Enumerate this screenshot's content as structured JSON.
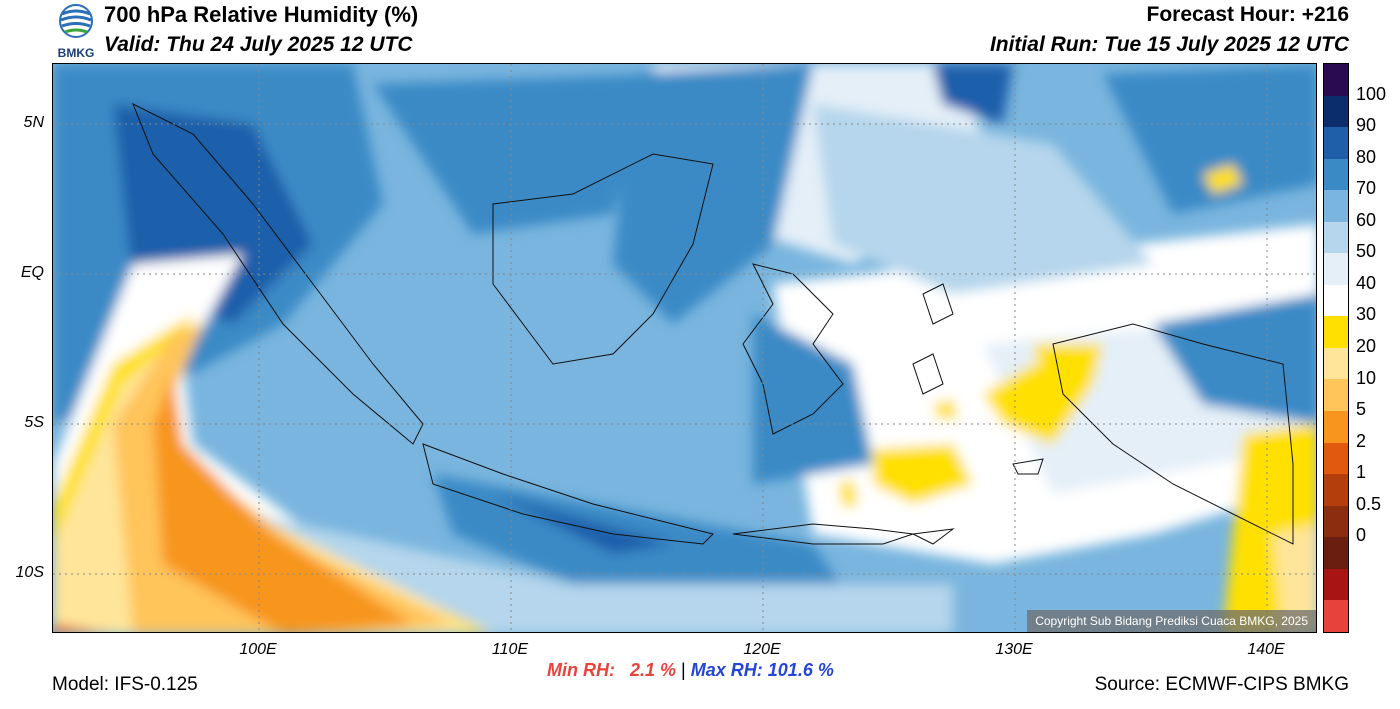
{
  "logo_text": "BMKG",
  "title": "700 hPa Relative Humidity (%)",
  "valid": "Valid: Thu 24 July 2025 12 UTC",
  "forecast_hour": "Forecast Hour: +216",
  "initial_run": "Initial Run: Tue 15 July 2025 12 UTC",
  "lat_labels": [
    "5N",
    "EQ",
    "5S",
    "10S"
  ],
  "lon_labels": [
    "100E",
    "110E",
    "120E",
    "130E",
    "140E"
  ],
  "copyright": "Copyright Sub Bidang Prediksi Cuaca BMKG, 2025",
  "colorbar": {
    "labels": [
      "100",
      "90",
      "80",
      "70",
      "60",
      "50",
      "40",
      "30",
      "20",
      "10",
      "5",
      "2",
      "1",
      "0.5",
      "0"
    ],
    "colors": [
      "#2a0a50",
      "#0b2d6b",
      "#1f5faa",
      "#3a8ac6",
      "#79b5de",
      "#b5d6ec",
      "#e4eff8",
      "#ffffff",
      "#ffe000",
      "#ffe59a",
      "#ffc45a",
      "#f7951f",
      "#e1580f",
      "#b43f0d",
      "#8a2e0e",
      "#6a1e10",
      "#a81414",
      "#e8433a"
    ]
  },
  "min_rh": {
    "label": "Min RH:",
    "value": "2.1 %"
  },
  "separator": "|",
  "max_rh": {
    "label": "Max RH:",
    "value": "101.6 %"
  },
  "model": "Model: IFS-0.125",
  "source": "Source: ECMWF-CIPS BMKG"
}
